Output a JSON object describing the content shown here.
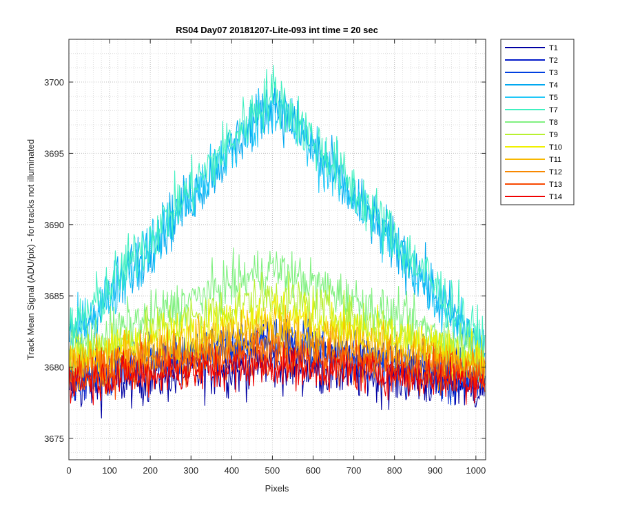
{
  "chart_data": {
    "type": "line",
    "title": "RS04 Day07 20181207-Lite-093 int time = 20 sec",
    "xlabel": "Pixels",
    "ylabel": "Track Mean Signal (ADU/pix) - for tracks not illuminated",
    "xlim": [
      0,
      1024
    ],
    "ylim": [
      3673.5,
      3703
    ],
    "xticks": [
      0,
      100,
      200,
      300,
      400,
      500,
      600,
      700,
      800,
      900,
      1000
    ],
    "yticks": [
      3675,
      3680,
      3685,
      3690,
      3695,
      3700
    ],
    "grid": "major and minor, dotted",
    "legend_position": "outside-right",
    "series": [
      {
        "name": "T1",
        "color": "#0000a3",
        "edge": 3678.6,
        "peak": 3680.2,
        "noise": 3.4
      },
      {
        "name": "T2",
        "color": "#0018c8",
        "edge": 3679.2,
        "peak": 3681.8,
        "noise": 3.2
      },
      {
        "name": "T3",
        "color": "#0040e0",
        "edge": 3679.0,
        "peak": 3682.0,
        "noise": 3.0
      },
      {
        "name": "T4",
        "color": "#00a8f0",
        "edge": 3681.0,
        "peak": 3698.8,
        "noise": 3.6
      },
      {
        "name": "T5",
        "color": "#20c8f8",
        "edge": 3681.0,
        "peak": 3698.6,
        "noise": 3.6
      },
      {
        "name": "T7",
        "color": "#40f0c0",
        "edge": 3681.5,
        "peak": 3699.4,
        "noise": 3.6
      },
      {
        "name": "T8",
        "color": "#80f080",
        "edge": 3681.0,
        "peak": 3687.0,
        "noise": 3.0
      },
      {
        "name": "T9",
        "color": "#b8f030",
        "edge": 3680.6,
        "peak": 3685.0,
        "noise": 3.0
      },
      {
        "name": "T10",
        "color": "#f0f000",
        "edge": 3680.4,
        "peak": 3683.8,
        "noise": 3.0
      },
      {
        "name": "T11",
        "color": "#f8b800",
        "edge": 3680.0,
        "peak": 3682.8,
        "noise": 2.9
      },
      {
        "name": "T12",
        "color": "#f88800",
        "edge": 3679.8,
        "peak": 3681.6,
        "noise": 2.8
      },
      {
        "name": "T13",
        "color": "#f84800",
        "edge": 3679.3,
        "peak": 3680.8,
        "noise": 2.7
      },
      {
        "name": "T14",
        "color": "#f00000",
        "edge": 3679.0,
        "peak": 3680.1,
        "noise": 2.6
      }
    ]
  }
}
